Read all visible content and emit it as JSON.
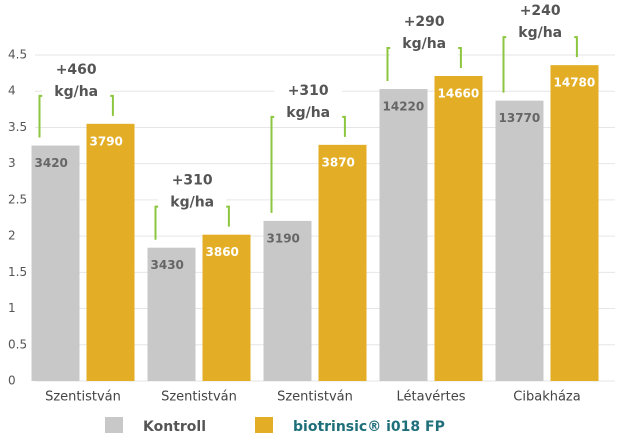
{
  "chart_data": {
    "type": "bar",
    "categories": [
      "Szentistván",
      "Szentistván",
      "Szentistván",
      "Létavértes",
      "Cibakháza"
    ],
    "series": [
      {
        "name": "Kontroll",
        "color": "#c8c8c8",
        "values": [
          3.25,
          1.84,
          2.21,
          4.03,
          3.87
        ],
        "bar_labels": [
          3420,
          3430,
          3190,
          14220,
          13770
        ]
      },
      {
        "name": "biotrinsic® i018 FP",
        "color": "#e3ae25",
        "values": [
          3.55,
          2.02,
          3.26,
          4.21,
          4.36
        ],
        "bar_labels": [
          3790,
          3860,
          3870,
          14660,
          14780
        ]
      }
    ],
    "annotations": [
      {
        "text": "+460",
        "unit": "kg/ha"
      },
      {
        "text": "+310",
        "unit": "kg/ha"
      },
      {
        "text": "+310",
        "unit": "kg/ha"
      },
      {
        "text": "+290",
        "unit": "kg/ha"
      },
      {
        "text": "+240",
        "unit": "kg/ha"
      }
    ],
    "ylim": [
      0,
      4.5
    ],
    "yticks": [
      0,
      0.5,
      1,
      1.5,
      2,
      2.5,
      3,
      3.5,
      4,
      4.5
    ],
    "grid": true
  }
}
